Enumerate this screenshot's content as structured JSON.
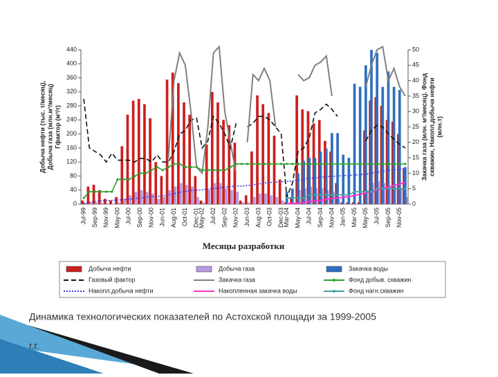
{
  "chart_data": {
    "type": "bar-line",
    "x_label": "Месяцы разработки",
    "y_label": [
      "Добыча нефти (тыс. т/месяц),",
      "Добыча газа (млн.м³/месяц)",
      "Гфактор (м³/т)"
    ],
    "y2_label": [
      "Закачка газа (млн. м³/месяц). Фонд",
      "скважин, Накопл.добыча нефти",
      "(млн.т)"
    ],
    "ylim": [
      0,
      440
    ],
    "yticks": [
      0,
      40,
      80,
      120,
      160,
      200,
      240,
      280,
      320,
      360,
      400,
      440
    ],
    "y2lim": [
      0,
      50
    ],
    "y2ticks": [
      0,
      5,
      10,
      15,
      20,
      25,
      30,
      35,
      40,
      45,
      50
    ],
    "categories": [
      "Jul-99",
      null,
      "Sep-99",
      null,
      "Nov-99",
      null,
      "May-00",
      null,
      "Jul-00",
      null,
      "Sep-00",
      null,
      "Nov-00",
      null,
      "Jun-01",
      null,
      "Aug-01",
      null,
      "Oct-01",
      null,
      "Dec-01",
      "May-02",
      null,
      "Jul-02",
      null,
      "Sep-02",
      null,
      "Nov-02",
      null,
      "Jun-03",
      null,
      "Aug-03",
      null,
      "Oct-03",
      null,
      "Dec-03",
      "Mar-04",
      null,
      "May-04",
      null,
      "Jul-04",
      null,
      "Sep-04",
      null,
      "Nov-04",
      null,
      "Jan-05",
      null,
      "Mar-05",
      null,
      "May-05",
      null,
      "Jul-05",
      null,
      "Sep-05",
      null,
      "Nov-05",
      null
    ],
    "series": [
      {
        "name": "Добыча нефти",
        "style": "bar",
        "color": "#cc1f1f",
        "axis": "y",
        "values": [
          10,
          50,
          55,
          40,
          15,
          10,
          20,
          165,
          255,
          295,
          300,
          285,
          245,
          120,
          80,
          355,
          375,
          345,
          290,
          255,
          80,
          10,
          170,
          320,
          290,
          240,
          225,
          175,
          10,
          25,
          150,
          310,
          285,
          260,
          195,
          70,
          5,
          20,
          310,
          270,
          265,
          230,
          240,
          180,
          150,
          60,
          5,
          5,
          5,
          5,
          210,
          295,
          305,
          280,
          240,
          235,
          200,
          100
        ]
      },
      {
        "name": "Добыча газа",
        "style": "bar",
        "color": "#b89ae0",
        "axis": "y",
        "values": [
          2,
          5,
          5,
          4,
          2,
          1,
          5,
          15,
          25,
          35,
          40,
          35,
          30,
          15,
          20,
          40,
          50,
          60,
          55,
          50,
          20,
          5,
          40,
          60,
          60,
          45,
          40,
          35,
          5,
          5,
          20,
          30,
          30,
          25,
          20,
          10,
          1,
          3,
          40,
          45,
          50,
          45,
          45,
          40,
          35,
          15,
          1,
          1,
          1,
          1,
          40,
          60,
          65,
          60,
          50,
          50,
          45,
          20
        ]
      },
      {
        "name": "Закачка воды",
        "style": "bar",
        "color": "#2e6fc0",
        "axis": "y2",
        "values": [
          null,
          null,
          null,
          null,
          null,
          null,
          null,
          null,
          null,
          null,
          null,
          null,
          null,
          null,
          null,
          null,
          null,
          null,
          null,
          null,
          null,
          null,
          null,
          null,
          null,
          null,
          null,
          null,
          null,
          null,
          null,
          null,
          null,
          null,
          null,
          null,
          4,
          5,
          10,
          14,
          15,
          15,
          17,
          18,
          23,
          23,
          16,
          15,
          39,
          38,
          45,
          50,
          49,
          38,
          43,
          38,
          37,
          12
        ]
      },
      {
        "name": "Газовый фактор",
        "style": "dashed",
        "color": "#111111",
        "axis": "y",
        "values": [
          300,
          160,
          150,
          140,
          120,
          145,
          125,
          125,
          125,
          120,
          130,
          130,
          120,
          140,
          120,
          120,
          150,
          200,
          210,
          240,
          245,
          160,
          180,
          250,
          230,
          200,
          160,
          230,
          null,
          220,
          230,
          250,
          250,
          240,
          220,
          200,
          20,
          60,
          150,
          160,
          190,
          260,
          270,
          285,
          270,
          250,
          null,
          null,
          null,
          null,
          180,
          210,
          225,
          220,
          200,
          185,
          170,
          160
        ]
      },
      {
        "name": "Закачка газа",
        "style": "solid",
        "color": "#808080",
        "axis": "y2",
        "values": [
          null,
          null,
          null,
          null,
          null,
          null,
          null,
          null,
          null,
          null,
          null,
          null,
          null,
          null,
          null,
          15,
          40,
          49,
          45,
          30,
          12,
          10,
          25,
          49,
          51,
          30,
          20,
          10,
          null,
          20,
          42,
          40,
          44,
          40,
          25,
          null,
          null,
          null,
          42,
          40,
          41,
          45,
          46,
          48,
          35,
          null,
          null,
          null,
          null,
          null,
          38,
          45,
          50,
          51,
          40,
          44,
          38,
          35
        ]
      },
      {
        "name": "Фонд добыв. скважин",
        "style": "marker",
        "color": "#2e9e2e",
        "axis": "y2",
        "values": [
          2,
          4,
          4,
          4,
          4,
          4,
          8,
          8,
          8,
          9,
          10,
          10,
          11,
          12,
          11,
          12,
          13,
          13,
          12,
          12,
          12,
          11,
          11,
          11,
          11,
          11,
          12,
          13,
          13,
          13,
          13,
          13,
          13,
          13,
          13,
          13,
          13,
          13,
          13,
          13,
          13,
          13,
          13,
          13,
          13,
          13,
          13,
          13,
          13,
          13,
          13,
          13,
          13,
          13,
          13,
          13,
          13,
          13
        ]
      },
      {
        "name": "Накопл.добыча нефти",
        "style": "dotted",
        "color": "#3a3ae0",
        "axis": "y2",
        "values": [
          0.2,
          0.5,
          0.8,
          1,
          1.1,
          1.2,
          1.3,
          1.4,
          1.6,
          1.8,
          2,
          2.2,
          2.4,
          2.5,
          2.6,
          3,
          3.4,
          3.8,
          4.1,
          4.4,
          4.5,
          4.6,
          4.8,
          5,
          5.2,
          5.5,
          5.7,
          5.8,
          5.8,
          6,
          6.2,
          6.5,
          6.8,
          7,
          7.1,
          7.2,
          7.3,
          7.5,
          7.8,
          8,
          8.3,
          8.5,
          8.7,
          8.9,
          9,
          9.1,
          9.2,
          9.3,
          9.4,
          9.5,
          9.7,
          10,
          10.3,
          10.6,
          10.9,
          11.1,
          11.3,
          11.5
        ]
      },
      {
        "name": "Накопленная закачка воды",
        "style": "solid",
        "color": "#ff33cc",
        "axis": "y2",
        "values": [
          null,
          null,
          null,
          null,
          null,
          null,
          null,
          null,
          null,
          null,
          null,
          null,
          null,
          null,
          null,
          null,
          null,
          null,
          null,
          null,
          null,
          null,
          null,
          null,
          null,
          null,
          null,
          null,
          null,
          null,
          null,
          null,
          null,
          null,
          null,
          null,
          0.1,
          0.2,
          0.3,
          0.5,
          0.8,
          1,
          1.2,
          1.5,
          1.8,
          2,
          2.2,
          2.4,
          2.8,
          3.2,
          3.6,
          4,
          4.5,
          5,
          5.5,
          6,
          6.5,
          7
        ]
      },
      {
        "name": "Фонд нагн.скважин",
        "style": "marker",
        "color": "#40a0a0",
        "axis": "y2",
        "values": [
          null,
          null,
          null,
          null,
          null,
          null,
          null,
          null,
          null,
          null,
          null,
          null,
          null,
          null,
          null,
          null,
          null,
          null,
          null,
          null,
          null,
          null,
          null,
          null,
          null,
          null,
          null,
          null,
          null,
          null,
          null,
          null,
          null,
          null,
          null,
          null,
          2,
          2,
          2,
          2,
          3,
          3,
          3,
          3,
          3,
          3,
          3,
          3,
          4,
          4,
          4,
          4,
          5,
          5,
          5,
          5,
          5,
          5
        ]
      }
    ]
  },
  "caption": [
    "Динамика технологических показателей по Астохской площади за 1999-2005",
    "г.г."
  ]
}
